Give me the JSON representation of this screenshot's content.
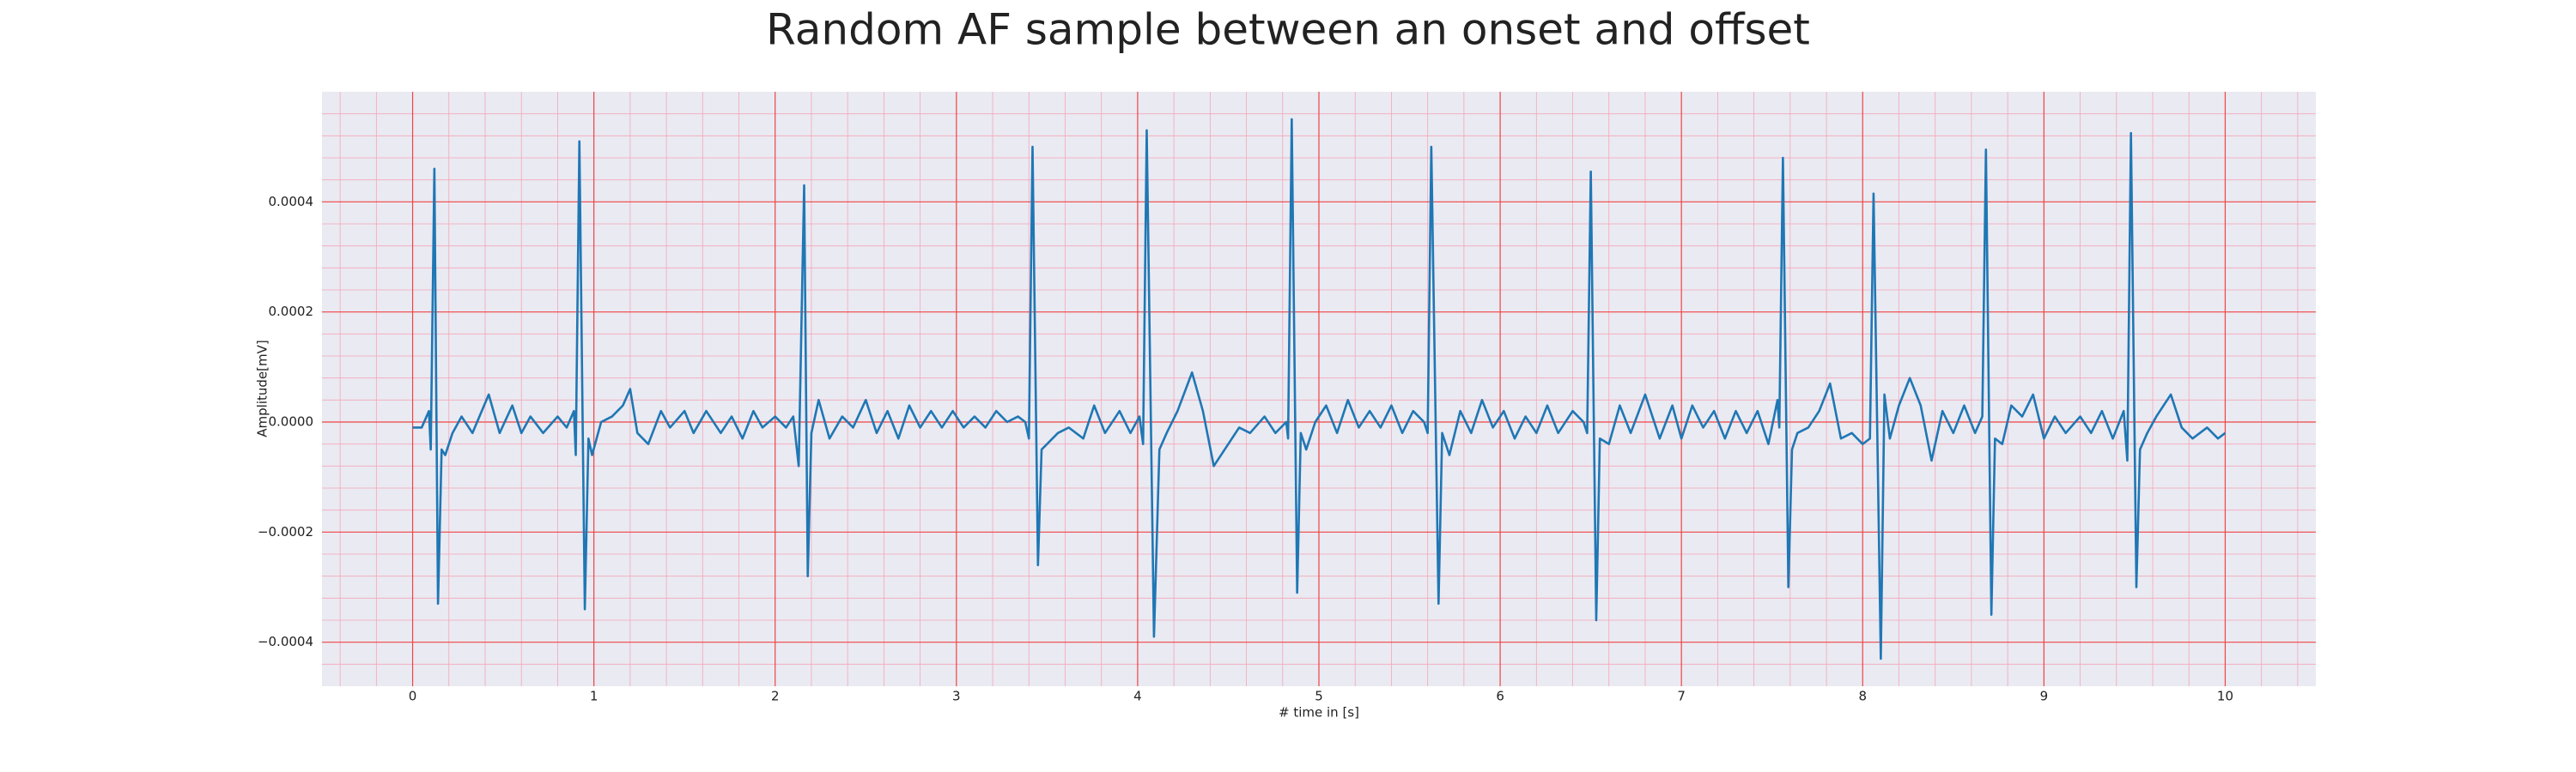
{
  "chart_data": {
    "type": "line",
    "title": "Random AF sample between an onset and offset",
    "xlabel": "# time in [s]",
    "ylabel": "Amplitude[mV]",
    "color": "#1f77b4",
    "grid": true,
    "minor_grid": true,
    "xlim": [
      -0.5,
      10.5
    ],
    "ylim": [
      -0.00048,
      0.0006
    ],
    "xticks": [
      0,
      1,
      2,
      3,
      4,
      5,
      6,
      7,
      8,
      9,
      10
    ],
    "yticks": [
      {
        "value": -0.0004,
        "label": "−0.0004"
      },
      {
        "value": -0.0002,
        "label": "−0.0002"
      },
      {
        "value": 0,
        "label": "0.0000"
      },
      {
        "value": 0.0002,
        "label": "0.0002"
      },
      {
        "value": 0.0004,
        "label": "0.0004"
      }
    ],
    "x": [
      0,
      0.05,
      0.09,
      0.1,
      0.12,
      0.14,
      0.16,
      0.18,
      0.22,
      0.27,
      0.33,
      0.42,
      0.48,
      0.55,
      0.6,
      0.65,
      0.72,
      0.8,
      0.85,
      0.89,
      0.9,
      0.92,
      0.95,
      0.97,
      0.99,
      1.04,
      1.1,
      1.16,
      1.2,
      1.24,
      1.3,
      1.37,
      1.42,
      1.5,
      1.55,
      1.62,
      1.7,
      1.76,
      1.82,
      1.88,
      1.93,
      2.0,
      2.06,
      2.1,
      2.13,
      2.16,
      2.18,
      2.2,
      2.24,
      2.3,
      2.37,
      2.43,
      2.5,
      2.56,
      2.62,
      2.68,
      2.74,
      2.8,
      2.86,
      2.92,
      2.98,
      3.04,
      3.1,
      3.16,
      3.22,
      3.28,
      3.34,
      3.38,
      3.4,
      3.42,
      3.45,
      3.47,
      3.5,
      3.56,
      3.62,
      3.7,
      3.76,
      3.82,
      3.9,
      3.96,
      4.01,
      4.03,
      4.05,
      4.09,
      4.12,
      4.16,
      4.22,
      4.3,
      4.36,
      4.42,
      4.5,
      4.56,
      4.62,
      4.7,
      4.76,
      4.82,
      4.83,
      4.85,
      4.88,
      4.9,
      4.93,
      4.98,
      5.04,
      5.1,
      5.16,
      5.22,
      5.28,
      5.34,
      5.4,
      5.46,
      5.52,
      5.58,
      5.6,
      5.62,
      5.66,
      5.68,
      5.72,
      5.78,
      5.84,
      5.9,
      5.96,
      6.02,
      6.08,
      6.14,
      6.2,
      6.26,
      6.32,
      6.4,
      6.46,
      6.48,
      6.5,
      6.53,
      6.55,
      6.6,
      6.66,
      6.72,
      6.8,
      6.88,
      6.95,
      7,
      7.06,
      7.12,
      7.18,
      7.24,
      7.3,
      7.36,
      7.42,
      7.48,
      7.53,
      7.54,
      7.56,
      7.59,
      7.61,
      7.64,
      7.7,
      7.76,
      7.82,
      7.88,
      7.94,
      8,
      8.04,
      8.06,
      8.1,
      8.12,
      8.15,
      8.2,
      8.26,
      8.32,
      8.38,
      8.44,
      8.5,
      8.56,
      8.62,
      8.66,
      8.68,
      8.71,
      8.73,
      8.77,
      8.82,
      8.88,
      8.94,
      9,
      9.06,
      9.12,
      9.2,
      9.26,
      9.32,
      9.38,
      9.44,
      9.46,
      9.48,
      9.51,
      9.53,
      9.57,
      9.62,
      9.7,
      9.76,
      9.82,
      9.9,
      9.96,
      10
    ],
    "values": [
      -1e-05,
      -1e-05,
      2e-05,
      -5e-05,
      0.00046,
      -0.00033,
      -5e-05,
      -6e-05,
      -2e-05,
      1e-05,
      -2e-05,
      5e-05,
      -2e-05,
      3e-05,
      -2e-05,
      1e-05,
      -2e-05,
      1e-05,
      -1e-05,
      2e-05,
      -6e-05,
      0.00051,
      -0.00034,
      -3e-05,
      -6e-05,
      0,
      1e-05,
      3e-05,
      6e-05,
      -2e-05,
      -4e-05,
      2e-05,
      -1e-05,
      2e-05,
      -2e-05,
      2e-05,
      -2e-05,
      1e-05,
      -3e-05,
      2e-05,
      -1e-05,
      1e-05,
      -1e-05,
      1e-05,
      -8e-05,
      0.00043,
      -0.00028,
      -2e-05,
      4e-05,
      -3e-05,
      1e-05,
      -1e-05,
      4e-05,
      -2e-05,
      2e-05,
      -3e-05,
      3e-05,
      -1e-05,
      2e-05,
      -1e-05,
      2e-05,
      -1e-05,
      1e-05,
      -1e-05,
      2e-05,
      0,
      1e-05,
      0,
      -3e-05,
      0.0005,
      -0.00026,
      -5e-05,
      -4e-05,
      -2e-05,
      -1e-05,
      -3e-05,
      3e-05,
      -2e-05,
      2e-05,
      -2e-05,
      1e-05,
      -4e-05,
      0.00053,
      -0.00039,
      -5e-05,
      -2e-05,
      2e-05,
      9e-05,
      2e-05,
      -8e-05,
      -4e-05,
      -1e-05,
      -2e-05,
      1e-05,
      -2e-05,
      0,
      -3e-05,
      0.00055,
      -0.00031,
      -2e-05,
      -5e-05,
      0,
      3e-05,
      -2e-05,
      4e-05,
      -1e-05,
      2e-05,
      -1e-05,
      3e-05,
      -2e-05,
      2e-05,
      0,
      -2e-05,
      0.0005,
      -0.00033,
      -2e-05,
      -6e-05,
      2e-05,
      -2e-05,
      4e-05,
      -1e-05,
      2e-05,
      -3e-05,
      1e-05,
      -2e-05,
      3e-05,
      -2e-05,
      2e-05,
      0,
      -2e-05,
      0.000455,
      -0.00036,
      -3e-05,
      -4e-05,
      3e-05,
      -2e-05,
      5e-05,
      -3e-05,
      3e-05,
      -3e-05,
      3e-05,
      -1e-05,
      2e-05,
      -3e-05,
      2e-05,
      -2e-05,
      2e-05,
      -4e-05,
      4e-05,
      -1e-05,
      0.00048,
      -0.0003,
      -5e-05,
      -2e-05,
      -1e-05,
      2e-05,
      7e-05,
      -3e-05,
      -2e-05,
      -4e-05,
      -3e-05,
      0.000415,
      -0.00043,
      5e-05,
      -3e-05,
      3e-05,
      8e-05,
      3e-05,
      -7e-05,
      2e-05,
      -2e-05,
      3e-05,
      -2e-05,
      1e-05,
      0.000495,
      -0.00035,
      -3e-05,
      -4e-05,
      3e-05,
      1e-05,
      5e-05,
      -3e-05,
      1e-05,
      -2e-05,
      1e-05,
      -2e-05,
      2e-05,
      -3e-05,
      2e-05,
      -7e-05,
      0.000525,
      -0.0003,
      -5e-05,
      -2e-05,
      1e-05,
      5e-05,
      -1e-05,
      -3e-05,
      -1e-05,
      -3e-05,
      -2e-05
    ]
  }
}
